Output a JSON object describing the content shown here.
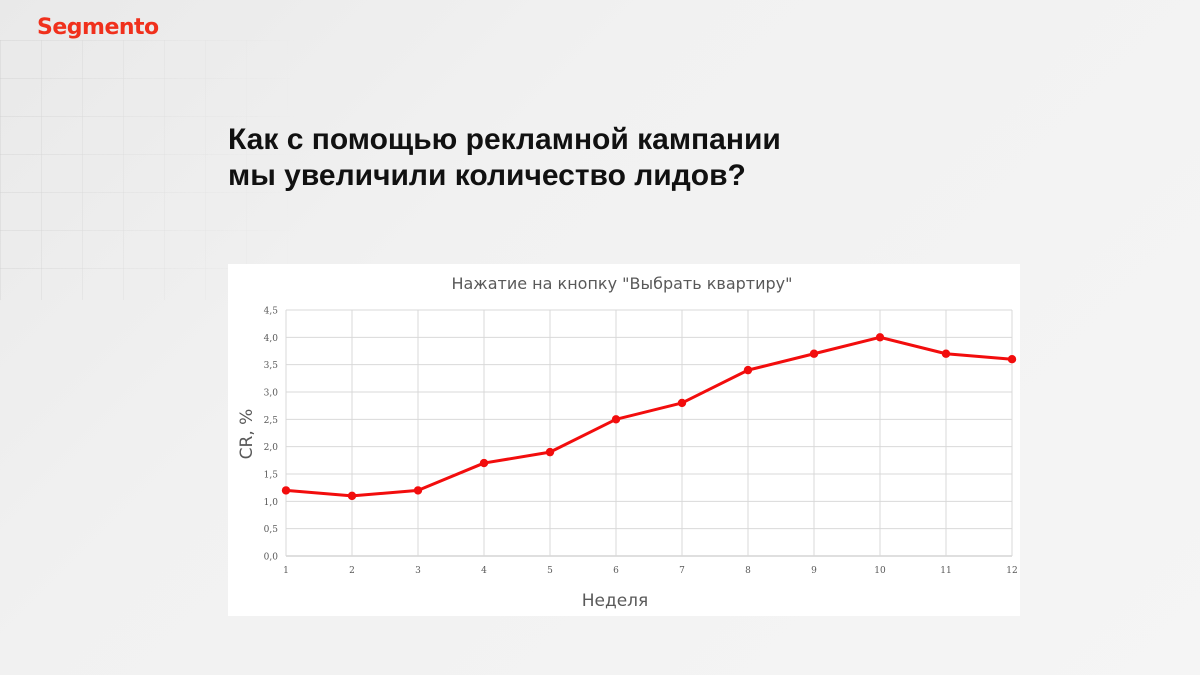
{
  "brand": {
    "logo_text": "Segmento",
    "accent_color": "#f0301c"
  },
  "slide": {
    "title_line1": "Как с помощью рекламной кампании",
    "title_line2": "мы увеличили количество лидов?"
  },
  "chart_data": {
    "type": "line",
    "title": "Нажатие на кнопку \"Выбрать квартиру\"",
    "xlabel": "Неделя",
    "ylabel": "CR, %",
    "x": [
      1,
      2,
      3,
      4,
      5,
      6,
      7,
      8,
      9,
      10,
      11,
      12
    ],
    "x_tick_labels": [
      "1",
      "2",
      "3",
      "4",
      "5",
      "6",
      "7",
      "8",
      "9",
      "10",
      "11",
      "12"
    ],
    "y_tick_labels": [
      "0,0",
      "0,5",
      "1,0",
      "1,5",
      "2,0",
      "2,5",
      "3,0",
      "3,5",
      "4,0",
      "4,5"
    ],
    "y_ticks": [
      0,
      0.5,
      1.0,
      1.5,
      2.0,
      2.5,
      3.0,
      3.5,
      4.0,
      4.5
    ],
    "ylim": [
      0,
      4.5
    ],
    "grid": true,
    "legend": "none",
    "series": [
      {
        "color": "#f20d0d",
        "values": [
          1.2,
          1.1,
          1.2,
          1.7,
          1.9,
          2.5,
          2.8,
          3.4,
          3.7,
          4.0,
          3.7,
          3.6
        ]
      }
    ]
  }
}
